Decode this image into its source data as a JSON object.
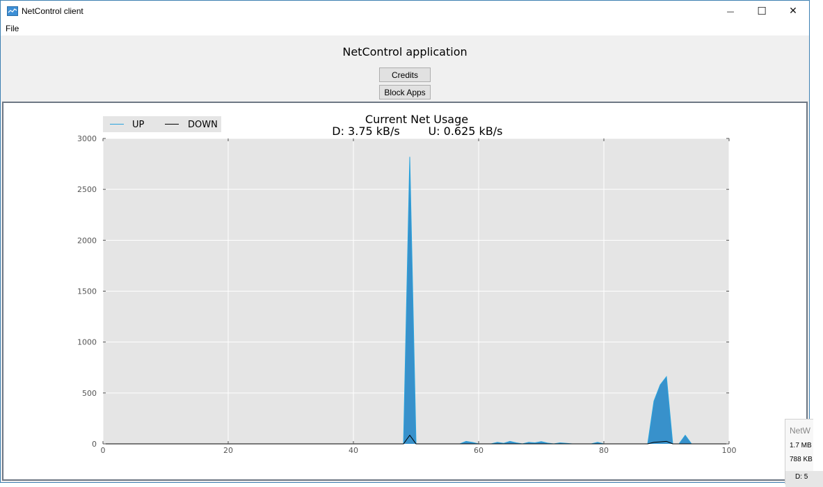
{
  "window": {
    "title": "NetControl client",
    "controls": {
      "minimize": "—",
      "maximize": "☐",
      "close": "✕"
    }
  },
  "menu": {
    "file": "File"
  },
  "header": {
    "title": "NetControl application",
    "credits_label": "Credits",
    "block_apps_label": "Block Apps"
  },
  "chart_data": {
    "type": "area",
    "title": "Current Net Usage",
    "subtitle_down": "D: 3.75 kB/s",
    "subtitle_up": "U: 0.625 kB/s",
    "xlim": [
      0,
      100
    ],
    "ylim": [
      0,
      3000
    ],
    "xticks": [
      0,
      20,
      40,
      60,
      80,
      100
    ],
    "yticks": [
      0,
      500,
      1000,
      1500,
      2000,
      2500,
      3000
    ],
    "grid": true,
    "legend_position": "top-left",
    "series": [
      {
        "name": "UP",
        "color": "#2e8cc9",
        "points": [
          [
            0,
            0
          ],
          [
            47,
            0
          ],
          [
            48,
            0
          ],
          [
            49,
            2820
          ],
          [
            50,
            0
          ],
          [
            52,
            0
          ],
          [
            57,
            0
          ],
          [
            58,
            25
          ],
          [
            59,
            15
          ],
          [
            60,
            0
          ],
          [
            62,
            0
          ],
          [
            63,
            15
          ],
          [
            64,
            5
          ],
          [
            65,
            25
          ],
          [
            66,
            10
          ],
          [
            67,
            0
          ],
          [
            68,
            15
          ],
          [
            69,
            10
          ],
          [
            70,
            22
          ],
          [
            71,
            8
          ],
          [
            72,
            0
          ],
          [
            73,
            10
          ],
          [
            74,
            5
          ],
          [
            75,
            0
          ],
          [
            78,
            0
          ],
          [
            79,
            15
          ],
          [
            80,
            0
          ],
          [
            87,
            0
          ],
          [
            88,
            420
          ],
          [
            89,
            580
          ],
          [
            90,
            660
          ],
          [
            91,
            0
          ],
          [
            92,
            0
          ],
          [
            93,
            85
          ],
          [
            94,
            0
          ],
          [
            100,
            0
          ]
        ]
      },
      {
        "name": "DOWN",
        "color": "#000000",
        "points": [
          [
            0,
            0
          ],
          [
            48,
            0
          ],
          [
            49,
            85
          ],
          [
            50,
            0
          ],
          [
            87,
            0
          ],
          [
            88,
            15
          ],
          [
            89,
            20
          ],
          [
            90,
            25
          ],
          [
            91,
            0
          ],
          [
            100,
            0
          ]
        ]
      }
    ]
  },
  "tray": {
    "title": "NetW",
    "line1": "1.7 MB",
    "line2": "788 KB",
    "footer": "D: 5"
  }
}
